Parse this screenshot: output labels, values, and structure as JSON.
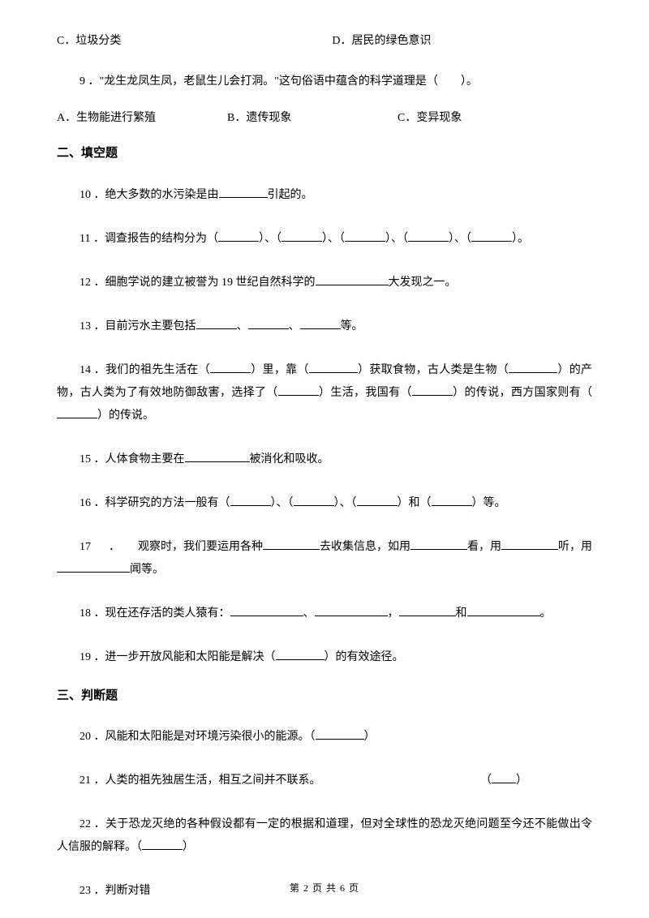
{
  "options_row1": {
    "c": "C．垃圾分类",
    "d": "D．居民的绿色意识"
  },
  "q9": {
    "text": "9 ．\"龙生龙凤生凤，老鼠生儿会打洞。\"这句俗语中蕴含的科学道理是（　　）。",
    "a": "A．生物能进行繁殖",
    "b": "B．遗传现象",
    "c": "C．变异现象"
  },
  "section2": "二、填空题",
  "q10": {
    "p1": "10 ．绝大多数的水污染是由",
    "p2": "引起的。"
  },
  "q11": {
    "p1": "11 ．调查报告的结构分为（",
    "p2": "）、（",
    "p3": "）、（",
    "p4": "）、（",
    "p5": "）、（",
    "p6": "）。"
  },
  "q12": {
    "p1": "12 ．细胞学说的建立被誉为 19 世纪自然科学的",
    "p2": "大发现之一。"
  },
  "q13": {
    "p1": "13 ．目前污水主要包括",
    "p2": "、",
    "p3": "、",
    "p4": "等。"
  },
  "q14": {
    "p1": "14 ．我们的祖先生活在（",
    "p2": "）里，靠（",
    "p3": "）获取食物，古人类是生物（",
    "p4": "）的产物，古人类为了有效地防御敌害，选择了（",
    "p5": "）生活，我国有（",
    "p6": "）的传说，西方国家则有（",
    "p7": "）的传说。"
  },
  "q15": {
    "p1": "15 ．人体食物主要在",
    "p2": "被消化和吸收。"
  },
  "q16": {
    "p1": "16 ．科学研究的方法一般有（",
    "p2": "）、（",
    "p3": "）、（",
    "p4": "）和（",
    "p5": "）等。"
  },
  "q17": {
    "l1a": "17",
    "l1b": "．",
    "l1c": "观察时，我们要运用各种",
    "l1d": "去收集信息，如用",
    "l1e": "看，用",
    "l1f": "听，用",
    "l2": "闻等。"
  },
  "q18": {
    "p1": "18 ．现在还存活的类人猿有：",
    "p2": "、",
    "p3": "，",
    "p4": "和",
    "p5": "。"
  },
  "q19": {
    "p1": "19 ．进一步开放风能和太阳能是解决（",
    "p2": "）的有效途径。"
  },
  "section3": "三、判断题",
  "q20": {
    "p1": "20 ．风能和太阳能是对环境污染很小的能源。（",
    "p2": "）"
  },
  "q21": {
    "p1": "21 ．人类的祖先独居生活，相互之间并不联系。",
    "p2": "（",
    "p3": "）"
  },
  "q22": {
    "p1": "22 ．关于恐龙灭绝的各种假设都有一定的根据和道理，但对全球性的恐龙灭绝问题至今还不能做出令人信服的解释。（",
    "p2": "）"
  },
  "q23": "23 ．判断对错",
  "footer": "第 2 页 共 6 页"
}
